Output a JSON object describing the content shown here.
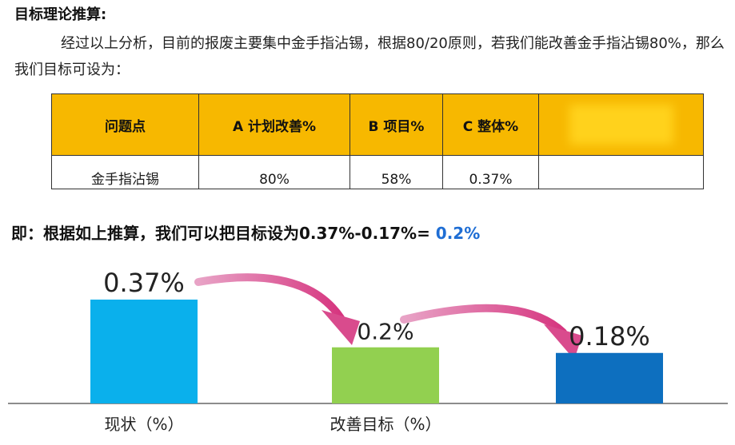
{
  "heading": "目标理论推算:",
  "paragraph": "经过以上分析，目前的报废主要集中金手指沾锡，根据80/20原则，若我们能改善金手指沾锡80%，那么我们目标可设为：",
  "table": {
    "headers": [
      "问题点",
      "A 计划改善%",
      "B 项目%",
      "C 整体%",
      ""
    ],
    "rows": [
      [
        "金手指沾锡",
        "80%",
        "58%",
        "0.37%",
        ""
      ]
    ]
  },
  "summary": {
    "prefix": "即：根据如上推算，我们可以把目标设为0.37%-0.17%=",
    "highlight": "0.2%"
  },
  "chart_data": {
    "type": "bar",
    "bars": [
      {
        "label": "0.37%",
        "value": 0.37,
        "color": "#0ab0ec"
      },
      {
        "label": "0.2%",
        "value": 0.2,
        "color": "#92d050"
      },
      {
        "label": "0.18%",
        "value": 0.18,
        "color": "#0d6fbf"
      }
    ],
    "category_labels": [
      {
        "text": "现状（%）",
        "under_bar": 0
      },
      {
        "text": "改善目标（%）",
        "under_bar": 1
      }
    ],
    "arrows": [
      {
        "from": 0,
        "to": 1,
        "color": "#d94b8d"
      },
      {
        "from": 1,
        "to": 2,
        "color": "#d94b8d"
      }
    ],
    "ylim": [
      0,
      0.4
    ]
  }
}
